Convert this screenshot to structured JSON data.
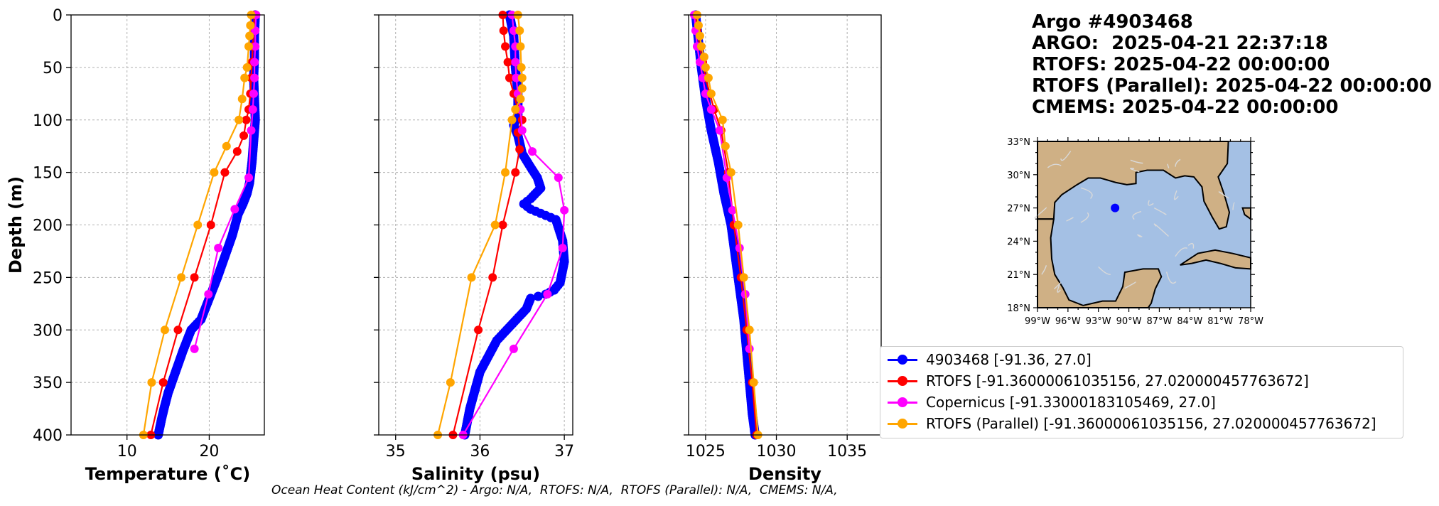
{
  "header": {
    "line1": "Argo #4903468",
    "line2": "ARGO:  2025-04-21 22:37:18",
    "line3": "RTOFS: 2025-04-22 00:00:00",
    "line4": "RTOFS (Parallel): 2025-04-22 00:00:00",
    "line5": "CMEMS: 2025-04-22 00:00:00"
  },
  "footer": "Ocean Heat Content (kJ/cm^2) - Argo: N/A,  RTOFS: N/A,  RTOFS (Parallel): N/A,  CMEMS: N/A,",
  "colors": {
    "argo": "#0000ff",
    "rtofs": "#ff0000",
    "copernicus": "#ff00ff",
    "rtofs_parallel": "#ffa500",
    "land": "#cfb085",
    "ocean": "#a4c0e4",
    "streams": "#d9d9d9"
  },
  "legend": [
    {
      "label": "4903468 [-91.36, 27.0]",
      "color": "#0000ff"
    },
    {
      "label": "RTOFS [-91.36000061035156, 27.020000457763672]",
      "color": "#ff0000"
    },
    {
      "label": "Copernicus [-91.33000183105469, 27.0]",
      "color": "#ff00ff"
    },
    {
      "label": "RTOFS (Parallel) [-91.36000061035156, 27.020000457763672]",
      "color": "#ffa500"
    }
  ],
  "map": {
    "lat_labels": [
      "33°N",
      "30°N",
      "27°N",
      "24°N",
      "21°N",
      "18°N"
    ],
    "lon_labels": [
      "99°W",
      "96°W",
      "93°W",
      "90°W",
      "87°W",
      "84°W",
      "81°W",
      "78°W"
    ],
    "lat_range": [
      18,
      33
    ],
    "lon_range": [
      -99,
      -78
    ],
    "float_position": {
      "lon": -91.36,
      "lat": 27.0
    }
  },
  "chart_data": [
    {
      "type": "line",
      "xlabel": "Temperature (˚C)",
      "ylabel": "Depth (m)",
      "xlim": [
        3.2,
        26.7
      ],
      "ylim": [
        400,
        0
      ],
      "xticks": [
        10,
        20
      ],
      "yticks": [
        0,
        50,
        100,
        150,
        200,
        250,
        300,
        350,
        400
      ],
      "grid": true,
      "series": [
        {
          "name": "4903468",
          "color": "#0000ff",
          "dense": true,
          "x": [
            25.6,
            25.5,
            25.5,
            25.4,
            25.5,
            25.6,
            25.4,
            25.2,
            24.9,
            24.6,
            24.1,
            23.5,
            22.8,
            21.9,
            21.0,
            20.0,
            19.0,
            17.8,
            16.8,
            15.9,
            15.0,
            14.5,
            14.2,
            13.8
          ],
          "y": [
            0,
            20,
            40,
            60,
            80,
            100,
            120,
            140,
            160,
            170,
            180,
            190,
            210,
            230,
            250,
            270,
            290,
            300,
            320,
            340,
            360,
            375,
            385,
            400
          ]
        },
        {
          "name": "RTOFS",
          "color": "#ff0000",
          "x": [
            25.5,
            25.4,
            25.3,
            25.2,
            25.1,
            25.0,
            24.8,
            24.5,
            24.2,
            23.4,
            21.9,
            20.2,
            18.2,
            16.2,
            14.4,
            12.9
          ],
          "y": [
            0,
            15,
            30,
            45,
            60,
            75,
            90,
            100,
            115,
            130,
            150,
            200,
            250,
            300,
            350,
            400
          ]
        },
        {
          "name": "Copernicus",
          "color": "#ff00ff",
          "x": [
            25.7,
            25.6,
            25.6,
            25.5,
            25.5,
            25.4,
            25.3,
            25.1,
            24.8,
            23.1,
            21.1,
            19.9,
            18.2
          ],
          "y": [
            0,
            15,
            30,
            45,
            60,
            75,
            90,
            110,
            155,
            185,
            222,
            266,
            318
          ]
        },
        {
          "name": "RTOFS (Parallel)",
          "color": "#ffa500",
          "x": [
            25.1,
            25.0,
            24.9,
            24.8,
            24.6,
            24.3,
            24.0,
            23.6,
            22.1,
            20.6,
            18.6,
            16.6,
            14.6,
            13.0,
            12.0
          ],
          "y": [
            0,
            10,
            20,
            30,
            50,
            60,
            80,
            100,
            125,
            150,
            200,
            250,
            300,
            350,
            400
          ]
        }
      ]
    },
    {
      "type": "line",
      "xlabel": "Salinity (psu)",
      "ylabel": "",
      "xlim": [
        34.8,
        37.1
      ],
      "ylim": [
        400,
        0
      ],
      "xticks": [
        35,
        36,
        37
      ],
      "yticks": [
        0,
        50,
        100,
        150,
        200,
        250,
        300,
        350,
        400
      ],
      "grid": true,
      "series": [
        {
          "name": "4903468",
          "color": "#0000ff",
          "dense": true,
          "x": [
            36.35,
            36.4,
            36.42,
            36.45,
            36.45,
            36.4,
            36.45,
            36.48,
            36.5,
            36.6,
            36.68,
            36.72,
            36.6,
            36.52,
            36.6,
            36.9,
            36.98,
            37.0,
            36.95,
            36.88,
            36.78,
            36.6,
            36.55,
            36.2,
            36.0,
            35.88,
            35.82
          ],
          "y": [
            0,
            20,
            50,
            75,
            95,
            105,
            115,
            125,
            132,
            145,
            155,
            165,
            175,
            180,
            185,
            195,
            215,
            235,
            255,
            262,
            266,
            270,
            280,
            310,
            340,
            375,
            400
          ]
        },
        {
          "name": "RTOFS",
          "color": "#ff0000",
          "x": [
            36.27,
            36.28,
            36.3,
            36.33,
            36.35,
            36.4,
            36.45,
            36.5,
            36.45,
            36.47,
            36.42,
            36.27,
            36.15,
            35.98,
            35.68
          ],
          "y": [
            0,
            15,
            30,
            45,
            60,
            75,
            90,
            100,
            112,
            128,
            150,
            200,
            250,
            300,
            400
          ]
        },
        {
          "name": "Copernicus",
          "color": "#ff00ff",
          "x": [
            36.38,
            36.4,
            36.42,
            36.42,
            36.43,
            36.45,
            36.48,
            36.5,
            36.62,
            36.93,
            37.0,
            36.98,
            36.8,
            36.4,
            35.8
          ],
          "y": [
            0,
            15,
            30,
            45,
            60,
            75,
            90,
            110,
            130,
            155,
            186,
            222,
            266,
            318,
            400
          ]
        },
        {
          "name": "RTOFS (Parallel)",
          "color": "#ffa500",
          "x": [
            36.45,
            36.47,
            36.48,
            36.49,
            36.5,
            36.5,
            36.48,
            36.42,
            36.38,
            36.3,
            36.18,
            35.9,
            35.65,
            35.5
          ],
          "y": [
            0,
            15,
            30,
            50,
            60,
            70,
            80,
            90,
            100,
            150,
            200,
            250,
            350,
            400
          ]
        }
      ]
    },
    {
      "type": "line",
      "xlabel": "Density",
      "ylabel": "",
      "xlim": [
        1023.8,
        1037.4
      ],
      "ylim": [
        400,
        0
      ],
      "xticks": [
        1025,
        1030,
        1035
      ],
      "yticks": [
        0,
        50,
        100,
        150,
        200,
        250,
        300,
        350,
        400
      ],
      "grid": true,
      "series": [
        {
          "name": "4903468",
          "color": "#0000ff",
          "dense": true,
          "x": [
            1024.3,
            1024.5,
            1024.7,
            1025.0,
            1025.4,
            1025.9,
            1026.3,
            1026.8,
            1027.1,
            1027.4,
            1027.7,
            1027.9,
            1028.1,
            1028.3,
            1028.5
          ],
          "y": [
            0,
            25,
            50,
            80,
            110,
            140,
            170,
            200,
            230,
            260,
            290,
            320,
            350,
            380,
            400
          ]
        },
        {
          "name": "RTOFS",
          "color": "#ff0000",
          "x": [
            1024.3,
            1024.4,
            1024.6,
            1024.8,
            1025.0,
            1025.3,
            1025.6,
            1026.1,
            1026.6,
            1027.0,
            1027.5,
            1027.9,
            1028.3,
            1028.6
          ],
          "y": [
            0,
            15,
            30,
            45,
            60,
            75,
            90,
            110,
            150,
            200,
            250,
            300,
            350,
            400
          ]
        },
        {
          "name": "Copernicus",
          "color": "#ff00ff",
          "x": [
            1024.2,
            1024.3,
            1024.4,
            1024.6,
            1024.8,
            1025.0,
            1025.4,
            1026.0,
            1026.5,
            1026.9,
            1027.4,
            1027.8,
            1028.1
          ],
          "y": [
            0,
            15,
            30,
            45,
            60,
            75,
            90,
            110,
            155,
            186,
            222,
            266,
            318
          ]
        },
        {
          "name": "RTOFS (Parallel)",
          "color": "#ffa500",
          "x": [
            1024.4,
            1024.5,
            1024.6,
            1024.7,
            1024.9,
            1025.0,
            1025.2,
            1025.4,
            1026.2,
            1026.4,
            1026.8,
            1027.3,
            1027.7,
            1028.1,
            1028.4,
            1028.7
          ],
          "y": [
            0,
            10,
            20,
            30,
            40,
            50,
            60,
            75,
            100,
            125,
            150,
            200,
            250,
            300,
            350,
            400
          ]
        }
      ]
    }
  ]
}
